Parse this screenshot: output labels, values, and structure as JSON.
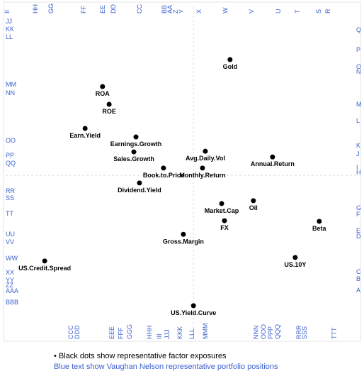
{
  "chart_data": {
    "type": "scatter",
    "xlim": [
      0,
      100
    ],
    "ylim": [
      0,
      100
    ],
    "reference_lines": {
      "x": 53.9,
      "y": 46.5
    },
    "point_color": "#000000",
    "position_color": "#3a5fcd",
    "points": [
      {
        "label": "Gold",
        "x": 64.4,
        "y": 83.0
      },
      {
        "label": "ROA",
        "x": 27.8,
        "y": 74.5
      },
      {
        "label": "ROE",
        "x": 29.7,
        "y": 68.9
      },
      {
        "label": "Earn.Yield",
        "x": 22.8,
        "y": 61.3
      },
      {
        "label": "Earnings.Growth",
        "x": 37.4,
        "y": 58.6
      },
      {
        "label": "Sales.Growth",
        "x": 36.8,
        "y": 53.9
      },
      {
        "label": "Avg.Daily.Vol",
        "x": 57.3,
        "y": 54.1
      },
      {
        "label": "Annual.Return",
        "x": 76.6,
        "y": 52.3
      },
      {
        "label": "Book.to.Price",
        "x": 45.3,
        "y": 48.8
      },
      {
        "label": "Monthly.Return",
        "x": 56.5,
        "y": 48.8
      },
      {
        "label": "Dividend.Yield",
        "x": 38.4,
        "y": 44.1
      },
      {
        "label": "Oil",
        "x": 71.1,
        "y": 38.5
      },
      {
        "label": "Market.Cap",
        "x": 62.0,
        "y": 37.6
      },
      {
        "label": "FX",
        "x": 62.8,
        "y": 32.2
      },
      {
        "label": "Beta",
        "x": 90.0,
        "y": 32.0
      },
      {
        "label": "Gross.Margin",
        "x": 51.0,
        "y": 27.9
      },
      {
        "label": "US.10Y",
        "x": 83.1,
        "y": 20.6
      },
      {
        "label": "US.Credit.Spread",
        "x": 11.2,
        "y": 19.5
      },
      {
        "label": "US.Yield.Curve",
        "x": 53.9,
        "y": 5.4
      }
    ],
    "top_positions": [
      {
        "label": "II",
        "x": 0.4
      },
      {
        "label": "HH",
        "x": 8.5
      },
      {
        "label": "GG",
        "x": 13.0
      },
      {
        "label": "FF",
        "x": 22.4
      },
      {
        "label": "EE",
        "x": 27.8
      },
      {
        "label": "DD",
        "x": 30.9
      },
      {
        "label": "CC",
        "x": 38.4
      },
      {
        "label": "BB",
        "x": 45.5
      },
      {
        "label": "AA",
        "x": 47.2
      },
      {
        "label": "Z",
        "x": 48.8
      },
      {
        "label": "Y",
        "x": 50.4
      },
      {
        "label": "X",
        "x": 55.5
      },
      {
        "label": "W",
        "x": 63.0
      },
      {
        "label": "V",
        "x": 70.5
      },
      {
        "label": "U",
        "x": 78.3
      },
      {
        "label": "T",
        "x": 83.7
      },
      {
        "label": "S",
        "x": 89.8
      },
      {
        "label": "R",
        "x": 92.5
      }
    ],
    "right_positions": [
      {
        "label": "Q",
        "y": 92.4
      },
      {
        "label": "P",
        "y": 86.1
      },
      {
        "label": "O",
        "y": 80.8
      },
      {
        "label": "N",
        "y": 79.2
      },
      {
        "label": "M",
        "y": 68.9
      },
      {
        "label": "L",
        "y": 63.8
      },
      {
        "label": "K",
        "y": 55.9
      },
      {
        "label": "J",
        "y": 53.2
      },
      {
        "label": "I",
        "y": 49.0
      },
      {
        "label": "H",
        "y": 47.4
      },
      {
        "label": "G",
        "y": 36.2
      },
      {
        "label": "F",
        "y": 34.2
      },
      {
        "label": "E",
        "y": 29.1
      },
      {
        "label": "D",
        "y": 27.3
      },
      {
        "label": "C",
        "y": 16.1
      },
      {
        "label": "B",
        "y": 13.9
      },
      {
        "label": "A",
        "y": 10.3
      }
    ],
    "left_positions": [
      {
        "label": "JJ",
        "y": 95.1
      },
      {
        "label": "KK",
        "y": 92.6
      },
      {
        "label": "LL",
        "y": 90.2
      },
      {
        "label": "MM",
        "y": 75.2
      },
      {
        "label": "NN",
        "y": 72.5
      },
      {
        "label": "OO",
        "y": 57.5
      },
      {
        "label": "PP",
        "y": 52.8
      },
      {
        "label": "QQ",
        "y": 50.3
      },
      {
        "label": "RR",
        "y": 41.6
      },
      {
        "label": "SS",
        "y": 39.4
      },
      {
        "label": "TT",
        "y": 34.5
      },
      {
        "label": "UU",
        "y": 28.0
      },
      {
        "label": "VV",
        "y": 25.5
      },
      {
        "label": "WW",
        "y": 20.4
      },
      {
        "label": "XX",
        "y": 15.9
      },
      {
        "label": "YY",
        "y": 13.4
      },
      {
        "label": "ZZ",
        "y": 11.9
      },
      {
        "label": "AAA",
        "y": 10.1
      },
      {
        "label": "BBB",
        "y": 6.5
      }
    ],
    "bottom_positions": [
      {
        "label": "CCC",
        "x": 18.7
      },
      {
        "label": "DDD",
        "x": 20.5
      },
      {
        "label": "EEE",
        "x": 30.5
      },
      {
        "label": "FFF",
        "x": 33.0
      },
      {
        "label": "GGG",
        "x": 35.6
      },
      {
        "label": "HHH",
        "x": 41.3
      },
      {
        "label": "III",
        "x": 44.1
      },
      {
        "label": "JJJ",
        "x": 46.3
      },
      {
        "label": "KKK",
        "x": 50.0
      },
      {
        "label": "LLL",
        "x": 53.5
      },
      {
        "label": "MMM",
        "x": 57.3
      },
      {
        "label": "NNN",
        "x": 71.9
      },
      {
        "label": "OOO",
        "x": 74.0
      },
      {
        "label": "PPP",
        "x": 76.0
      },
      {
        "label": "QQQ",
        "x": 78.0
      },
      {
        "label": "RRR",
        "x": 84.1
      },
      {
        "label": "SSS",
        "x": 85.8
      },
      {
        "label": "TTT",
        "x": 94.3
      }
    ],
    "notes": [
      "• Black dots show representative factor exposures",
      "Blue text show Vaughan Nelson representative portfolio positions"
    ]
  }
}
